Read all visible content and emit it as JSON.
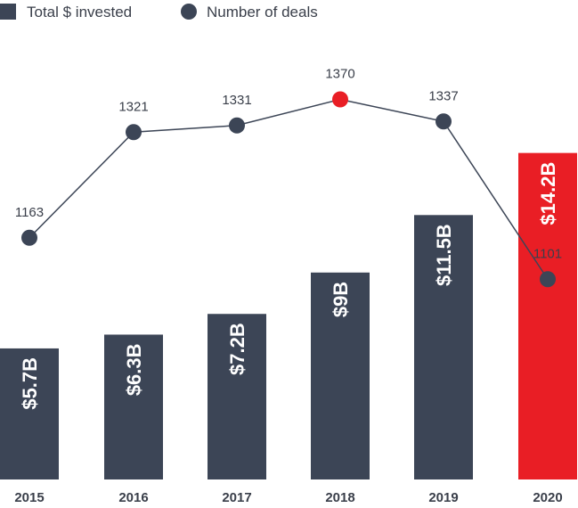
{
  "legend": {
    "invested_label": "Total $ invested",
    "deals_label": "Number of deals"
  },
  "colors": {
    "bar": "#3c4556",
    "highlight": "#e91e25",
    "line": "#3c4556",
    "text": "#3a3f4a"
  },
  "chart_data": {
    "type": "bar",
    "categories": [
      "2015",
      "2016",
      "2017",
      "2018",
      "2019",
      "2020"
    ],
    "series": [
      {
        "name": "Total $ invested",
        "type": "bar",
        "values": [
          5.7,
          6.3,
          7.2,
          9,
          11.5,
          14.2
        ],
        "labels": [
          "$5.7B",
          "$6.3B",
          "$7.2B",
          "$9B",
          "$11.5B",
          "$14.2B"
        ],
        "highlight_index": 5
      },
      {
        "name": "Number of deals",
        "type": "line",
        "values": [
          1163,
          1321,
          1331,
          1370,
          1337,
          1101
        ],
        "labels": [
          "1163",
          "1321",
          "1331",
          "1370",
          "1337",
          "1101"
        ],
        "highlight_index": 3
      }
    ],
    "title": "",
    "xlabel": "",
    "ylabel": "",
    "grid": false,
    "legend_position": "top-left"
  }
}
